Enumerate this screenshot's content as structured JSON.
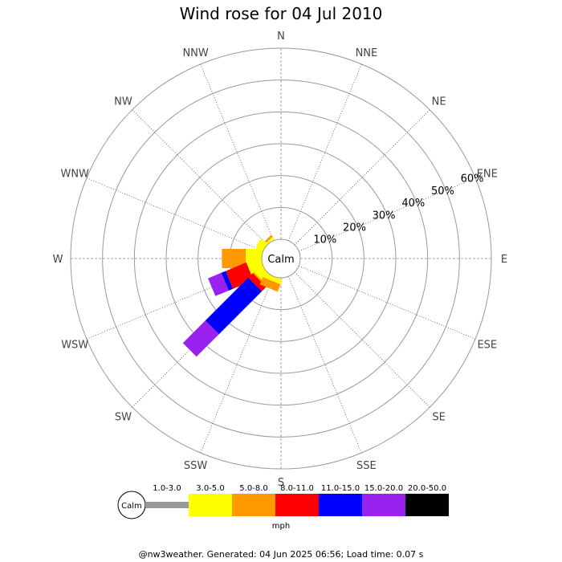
{
  "chart_data": {
    "type": "wind-rose",
    "title": "Wind rose for 04 Jul 2010",
    "calm_label": "Calm",
    "directions": [
      "N",
      "NNE",
      "NE",
      "ENE",
      "E",
      "ESE",
      "SE",
      "SSE",
      "S",
      "SSW",
      "SW",
      "WSW",
      "W",
      "WNW",
      "NW",
      "NNW"
    ],
    "rings": [
      10,
      20,
      30,
      40,
      50,
      60
    ],
    "ring_labels": [
      "10%",
      "20%",
      "30%",
      "40%",
      "50%",
      "60%"
    ],
    "rmax": 60,
    "units": "mph",
    "speed_bins": [
      {
        "label": "1.0-3.0",
        "color": "#999999"
      },
      {
        "label": "3.0-5.0",
        "color": "#ffff00"
      },
      {
        "label": "5.0-8.0",
        "color": "#ff9900"
      },
      {
        "label": "8.0-11.0",
        "color": "#ff0000"
      },
      {
        "label": "11.0-15.0",
        "color": "#0000ff"
      },
      {
        "label": "15.0-20.0",
        "color": "#9922ee"
      },
      {
        "label": "20.0-50.0",
        "color": "#000000"
      }
    ],
    "series": [
      {
        "direction": "NW",
        "values": [
          0,
          0.7,
          0.7,
          0,
          0,
          0,
          0
        ]
      },
      {
        "direction": "WNW",
        "values": [
          0,
          2.5,
          0,
          0,
          0,
          0,
          0
        ]
      },
      {
        "direction": "W",
        "values": [
          0,
          5.0,
          7.5,
          0,
          0,
          0,
          0
        ]
      },
      {
        "direction": "WSW",
        "values": [
          0,
          4.5,
          0,
          7.0,
          1.5,
          4.5,
          0
        ]
      },
      {
        "direction": "SW",
        "values": [
          0,
          3.0,
          0.5,
          2.0,
          19.0,
          10.0,
          0
        ]
      },
      {
        "direction": "SSW",
        "values": [
          0,
          1.5,
          2.5,
          0,
          0,
          0,
          0
        ]
      }
    ],
    "grid": true
  },
  "footer": "@nw3weather. Generated: 04 Jun 2025 06:56; Load time: 0.07 s"
}
